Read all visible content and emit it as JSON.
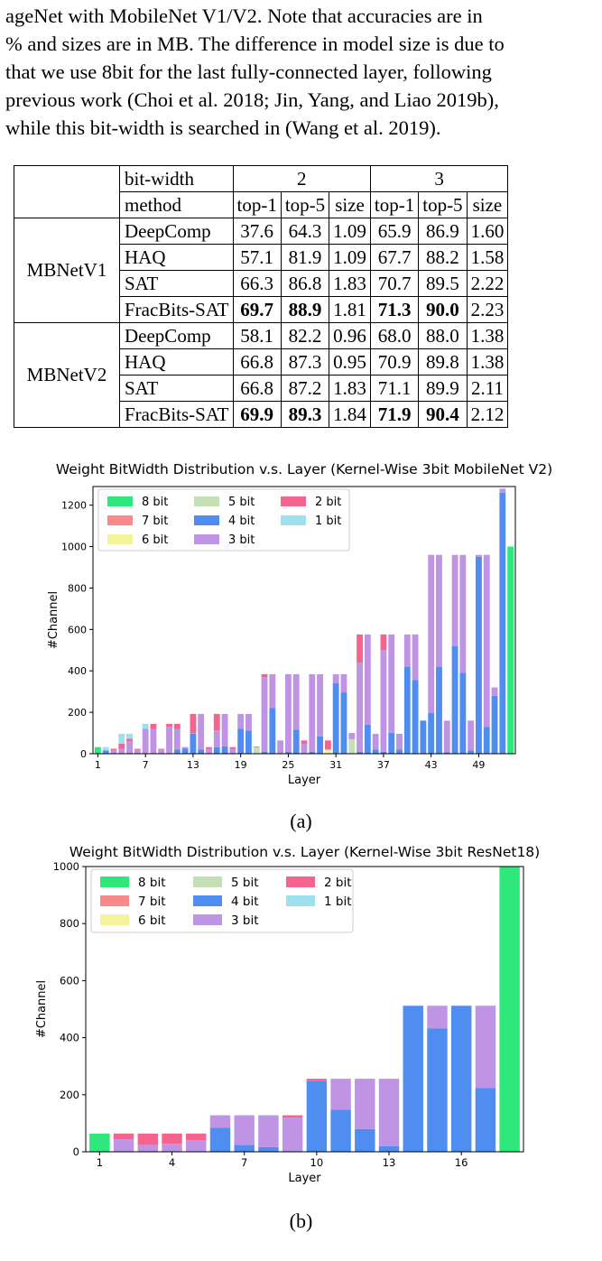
{
  "paragraph": [
    "ageNet with MobileNet V1/V2. Note that accuracies are in",
    "% and sizes are in MB. The difference in model size is due to",
    "that we use 8bit for the last fully-connected layer, following",
    "previous work (Choi et al. 2018; Jin, Yang, and Liao 2019b),",
    "while this bit-width is searched in (Wang et al. 2019)."
  ],
  "table": {
    "bitwidth_label": "bit-width",
    "method_label": "method",
    "bit2": "2",
    "bit3": "3",
    "cols": [
      "top-1",
      "top-5",
      "size",
      "top-1",
      "top-5",
      "size"
    ],
    "groups": [
      {
        "name": "MBNetV1",
        "rows": [
          {
            "method": "DeepComp",
            "vals": [
              "37.6",
              "64.3",
              "1.09",
              "65.9",
              "86.9",
              "1.60"
            ],
            "bold": []
          },
          {
            "method": "HAQ",
            "vals": [
              "57.1",
              "81.9",
              "1.09",
              "67.7",
              "88.2",
              "1.58"
            ],
            "bold": []
          },
          {
            "method": "SAT",
            "vals": [
              "66.3",
              "86.8",
              "1.83",
              "70.7",
              "89.5",
              "2.22"
            ],
            "bold": []
          },
          {
            "method": "FracBits-SAT",
            "vals": [
              "69.7",
              "88.9",
              "1.81",
              "71.3",
              "90.0",
              "2.23"
            ],
            "bold": [
              0,
              1,
              3,
              4
            ]
          }
        ]
      },
      {
        "name": "MBNetV2",
        "rows": [
          {
            "method": "DeepComp",
            "vals": [
              "58.1",
              "82.2",
              "0.96",
              "68.0",
              "88.0",
              "1.38"
            ],
            "bold": []
          },
          {
            "method": "HAQ",
            "vals": [
              "66.8",
              "87.3",
              "0.95",
              "70.9",
              "89.8",
              "1.38"
            ],
            "bold": []
          },
          {
            "method": "SAT",
            "vals": [
              "66.8",
              "87.2",
              "1.83",
              "71.1",
              "89.9",
              "2.11"
            ],
            "bold": []
          },
          {
            "method": "FracBits-SAT",
            "vals": [
              "69.9",
              "89.3",
              "1.84",
              "71.9",
              "90.4",
              "2.12"
            ],
            "bold": [
              0,
              1,
              3,
              4
            ]
          }
        ]
      }
    ]
  },
  "colors": {
    "8 bit": "#2ee87c",
    "7 bit": "#f98a8a",
    "6 bit": "#f3f39a",
    "5 bit": "#c5e0b6",
    "4 bit": "#4f8ef0",
    "3 bit": "#bf94e4",
    "2 bit": "#f5648f",
    "1 bit": "#9ee0ee"
  },
  "chart_data": [
    {
      "type": "bar",
      "stacked": true,
      "title": "Weight BitWidth Distribution v.s. Layer (Kernel-Wise 3bit MobileNet V2)",
      "xlabel": "Layer",
      "ylabel": "#Channel",
      "ylim": [
        0,
        1290
      ],
      "yticks": [
        0,
        200,
        400,
        600,
        800,
        1000,
        1200
      ],
      "xticks": [
        1,
        7,
        13,
        19,
        25,
        31,
        37,
        43,
        49
      ],
      "legend": [
        "8 bit",
        "5 bit",
        "2 bit",
        "7 bit",
        "4 bit",
        "1 bit",
        "6 bit",
        "3 bit"
      ],
      "legend_position": "top-left",
      "caption": "(a)",
      "series_order": [
        "4 bit",
        "5 bit",
        "3 bit",
        "6 bit",
        "2 bit",
        "7 bit",
        "1 bit",
        "8 bit"
      ],
      "layers": [
        {
          "x": 1,
          "8 bit": 32
        },
        {
          "x": 2,
          "4 bit": 16,
          "1 bit": 16
        },
        {
          "x": 3,
          "3 bit": 16,
          "2 bit": 8
        },
        {
          "x": 4,
          "3 bit": 24,
          "2 bit": 24,
          "1 bit": 48
        },
        {
          "x": 5,
          "3 bit": 60,
          "2 bit": 12,
          "1 bit": 24
        },
        {
          "x": 6,
          "3 bit": 20,
          "2 bit": 4
        },
        {
          "x": 7,
          "3 bit": 120,
          "1 bit": 24
        },
        {
          "x": 8,
          "3 bit": 120,
          "2 bit": 24
        },
        {
          "x": 9,
          "3 bit": 20,
          "2 bit": 4
        },
        {
          "x": 10,
          "3 bit": 130,
          "2 bit": 14
        },
        {
          "x": 11,
          "4 bit": 20,
          "3 bit": 100,
          "2 bit": 24
        },
        {
          "x": 12,
          "4 bit": 24,
          "3 bit": 8
        },
        {
          "x": 13,
          "4 bit": 96,
          "3 bit": 4,
          "2 bit": 92
        },
        {
          "x": 14,
          "4 bit": 20,
          "3 bit": 172
        },
        {
          "x": 15,
          "3 bit": 24,
          "2 bit": 8
        },
        {
          "x": 16,
          "4 bit": 32,
          "3 bit": 80,
          "2 bit": 80
        },
        {
          "x": 17,
          "4 bit": 36,
          "3 bit": 156
        },
        {
          "x": 18,
          "3 bit": 24,
          "2 bit": 8
        },
        {
          "x": 19,
          "4 bit": 120,
          "3 bit": 72
        },
        {
          "x": 20,
          "4 bit": 112,
          "3 bit": 80
        },
        {
          "x": 21,
          "5 bit": 30,
          "2 bit": 4
        },
        {
          "x": 22,
          "4 bit": 10,
          "3 bit": 360,
          "2 bit": 14
        },
        {
          "x": 23,
          "4 bit": 220,
          "3 bit": 164
        },
        {
          "x": 24,
          "3 bit": 64
        },
        {
          "x": 25,
          "4 bit": 10,
          "3 bit": 374
        },
        {
          "x": 26,
          "4 bit": 116,
          "3 bit": 268
        },
        {
          "x": 27,
          "3 bit": 48,
          "2 bit": 16
        },
        {
          "x": 28,
          "4 bit": 10,
          "3 bit": 374
        },
        {
          "x": 29,
          "4 bit": 84,
          "3 bit": 300
        },
        {
          "x": 30,
          "6 bit": 20,
          "2 bit": 44
        },
        {
          "x": 31,
          "4 bit": 340,
          "3 bit": 44
        },
        {
          "x": 32,
          "4 bit": 296,
          "3 bit": 88
        },
        {
          "x": 33,
          "5 bit": 70,
          "3 bit": 30
        },
        {
          "x": 34,
          "4 bit": 10,
          "3 bit": 430,
          "2 bit": 136
        },
        {
          "x": 35,
          "4 bit": 140,
          "3 bit": 436
        },
        {
          "x": 36,
          "4 bit": 20,
          "3 bit": 76
        },
        {
          "x": 37,
          "4 bit": 10,
          "3 bit": 490,
          "2 bit": 76
        },
        {
          "x": 38,
          "4 bit": 100,
          "3 bit": 476
        },
        {
          "x": 39,
          "4 bit": 20,
          "3 bit": 76
        },
        {
          "x": 40,
          "4 bit": 420,
          "3 bit": 156
        },
        {
          "x": 41,
          "4 bit": 356,
          "3 bit": 220
        },
        {
          "x": 42,
          "4 bit": 160
        },
        {
          "x": 43,
          "4 bit": 196,
          "3 bit": 764
        },
        {
          "x": 44,
          "4 bit": 420,
          "3 bit": 540
        },
        {
          "x": 45,
          "4 bit": 8,
          "3 bit": 152
        },
        {
          "x": 46,
          "4 bit": 520,
          "3 bit": 440
        },
        {
          "x": 47,
          "4 bit": 390,
          "3 bit": 570
        },
        {
          "x": 48,
          "4 bit": 16,
          "3 bit": 144
        },
        {
          "x": 49,
          "4 bit": 950,
          "3 bit": 10
        },
        {
          "x": 50,
          "4 bit": 130,
          "3 bit": 830
        },
        {
          "x": 51,
          "4 bit": 280,
          "3 bit": 40
        },
        {
          "x": 52,
          "4 bit": 1260,
          "3 bit": 20
        },
        {
          "x": 53,
          "8 bit": 1000
        }
      ]
    },
    {
      "type": "bar",
      "stacked": true,
      "title": "Weight BitWidth Distribution v.s. Layer (Kernel-Wise 3bit ResNet18)",
      "xlabel": "Layer",
      "ylabel": "#Channel",
      "ylim": [
        0,
        1000
      ],
      "yticks": [
        0,
        200,
        400,
        600,
        800,
        1000
      ],
      "xticks": [
        1,
        4,
        7,
        10,
        13,
        16
      ],
      "legend": [
        "8 bit",
        "5 bit",
        "2 bit",
        "7 bit",
        "4 bit",
        "1 bit",
        "6 bit",
        "3 bit"
      ],
      "legend_position": "top-left",
      "caption": "(b)",
      "series_order": [
        "4 bit",
        "5 bit",
        "3 bit",
        "6 bit",
        "2 bit",
        "7 bit",
        "1 bit",
        "8 bit"
      ],
      "layers": [
        {
          "x": 1,
          "8 bit": 64
        },
        {
          "x": 2,
          "3 bit": 44,
          "2 bit": 20
        },
        {
          "x": 3,
          "3 bit": 24,
          "2 bit": 40
        },
        {
          "x": 4,
          "3 bit": 28,
          "2 bit": 36
        },
        {
          "x": 5,
          "3 bit": 40,
          "2 bit": 24
        },
        {
          "x": 6,
          "4 bit": 84,
          "3 bit": 44
        },
        {
          "x": 7,
          "4 bit": 24,
          "3 bit": 104
        },
        {
          "x": 8,
          "4 bit": 16,
          "3 bit": 112
        },
        {
          "x": 9,
          "3 bit": 120,
          "2 bit": 8
        },
        {
          "x": 10,
          "4 bit": 248,
          "2 bit": 8
        },
        {
          "x": 11,
          "4 bit": 148,
          "3 bit": 108
        },
        {
          "x": 12,
          "4 bit": 80,
          "3 bit": 176
        },
        {
          "x": 13,
          "4 bit": 20,
          "3 bit": 236
        },
        {
          "x": 14,
          "4 bit": 512
        },
        {
          "x": 15,
          "4 bit": 432,
          "3 bit": 80
        },
        {
          "x": 16,
          "4 bit": 512
        },
        {
          "x": 17,
          "4 bit": 224,
          "3 bit": 288
        },
        {
          "x": 18,
          "8 bit": 1000
        }
      ]
    }
  ]
}
